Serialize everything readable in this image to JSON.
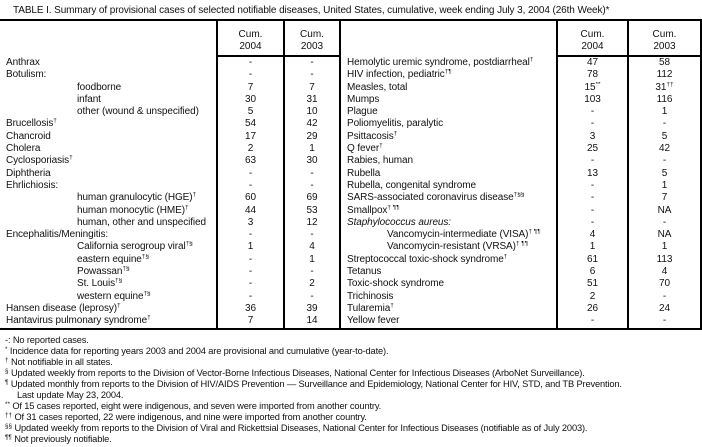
{
  "title": "TABLE I. Summary of provisional cases of selected notifiable diseases, United States, cumulative, week ending July 3, 2004 (26th Week)*",
  "header": {
    "cum": "Cum.",
    "y2004": "2004",
    "y2003": "2003"
  },
  "left_rows": [
    {
      "label": "Anthrax",
      "sup": "",
      "v04": "-",
      "v04s": "",
      "v03": "-",
      "v03s": "",
      "ind": false,
      "it": false
    },
    {
      "label": "Botulism:",
      "sup": "",
      "v04": "-",
      "v04s": "",
      "v03": "-",
      "v03s": "",
      "ind": false,
      "it": false
    },
    {
      "label": "foodborne",
      "sup": "",
      "v04": "7",
      "v04s": "",
      "v03": "7",
      "v03s": "",
      "ind": true,
      "it": false
    },
    {
      "label": "infant",
      "sup": "",
      "v04": "30",
      "v04s": "",
      "v03": "31",
      "v03s": "",
      "ind": true,
      "it": false
    },
    {
      "label": "other (wound & unspecified)",
      "sup": "",
      "v04": "5",
      "v04s": "",
      "v03": "10",
      "v03s": "",
      "ind": true,
      "it": false
    },
    {
      "label": "Brucellosis",
      "sup": "†",
      "v04": "54",
      "v04s": "",
      "v03": "42",
      "v03s": "",
      "ind": false,
      "it": false
    },
    {
      "label": "Chancroid",
      "sup": "",
      "v04": "17",
      "v04s": "",
      "v03": "29",
      "v03s": "",
      "ind": false,
      "it": false
    },
    {
      "label": "Cholera",
      "sup": "",
      "v04": "2",
      "v04s": "",
      "v03": "1",
      "v03s": "",
      "ind": false,
      "it": false
    },
    {
      "label": "Cyclosporiasis",
      "sup": "†",
      "v04": "63",
      "v04s": "",
      "v03": "30",
      "v03s": "",
      "ind": false,
      "it": false
    },
    {
      "label": "Diphtheria",
      "sup": "",
      "v04": "-",
      "v04s": "",
      "v03": "-",
      "v03s": "",
      "ind": false,
      "it": false
    },
    {
      "label": "Ehrlichiosis:",
      "sup": "",
      "v04": "-",
      "v04s": "",
      "v03": "-",
      "v03s": "",
      "ind": false,
      "it": false
    },
    {
      "label": "human granulocytic (HGE)",
      "sup": "†",
      "v04": "60",
      "v04s": "",
      "v03": "69",
      "v03s": "",
      "ind": true,
      "it": false
    },
    {
      "label": "human monocytic (HME)",
      "sup": "†",
      "v04": "44",
      "v04s": "",
      "v03": "53",
      "v03s": "",
      "ind": true,
      "it": false
    },
    {
      "label": "human, other and unspecified",
      "sup": "",
      "v04": "3",
      "v04s": "",
      "v03": "12",
      "v03s": "",
      "ind": true,
      "it": false
    },
    {
      "label": "Encephalitis/Meningitis:",
      "sup": "",
      "v04": "-",
      "v04s": "",
      "v03": "-",
      "v03s": "",
      "ind": false,
      "it": false
    },
    {
      "label": "California serogroup viral",
      "sup": "†§",
      "v04": "1",
      "v04s": "",
      "v03": "4",
      "v03s": "",
      "ind": true,
      "it": false
    },
    {
      "label": "eastern equine",
      "sup": "†§",
      "v04": "-",
      "v04s": "",
      "v03": "1",
      "v03s": "",
      "ind": true,
      "it": false
    },
    {
      "label": "Powassan",
      "sup": "†§",
      "v04": "-",
      "v04s": "",
      "v03": "-",
      "v03s": "",
      "ind": true,
      "it": false
    },
    {
      "label": "St. Louis",
      "sup": "†§",
      "v04": "-",
      "v04s": "",
      "v03": "2",
      "v03s": "",
      "ind": true,
      "it": false
    },
    {
      "label": "western equine",
      "sup": "†§",
      "v04": "-",
      "v04s": "",
      "v03": "-",
      "v03s": "",
      "ind": true,
      "it": false
    },
    {
      "label": "Hansen disease (leprosy)",
      "sup": "†",
      "v04": "36",
      "v04s": "",
      "v03": "39",
      "v03s": "",
      "ind": false,
      "it": false
    },
    {
      "label": "Hantavirus pulmonary syndrome",
      "sup": "†",
      "v04": "7",
      "v04s": "",
      "v03": "14",
      "v03s": "",
      "ind": false,
      "it": false
    }
  ],
  "right_rows": [
    {
      "label": "Hemolytic uremic syndrome, postdiarrheal",
      "sup": "†",
      "v04": "47",
      "v04s": "",
      "v03": "58",
      "v03s": "",
      "ind": false,
      "it": false
    },
    {
      "label": "HIV infection, pediatric",
      "sup": "†¶",
      "v04": "78",
      "v04s": "",
      "v03": "112",
      "v03s": "",
      "ind": false,
      "it": false
    },
    {
      "label": "Measles, total",
      "sup": "",
      "v04": "15",
      "v04s": "**",
      "v03": "31",
      "v03s": "††",
      "ind": false,
      "it": false
    },
    {
      "label": "Mumps",
      "sup": "",
      "v04": "103",
      "v04s": "",
      "v03": "116",
      "v03s": "",
      "ind": false,
      "it": false
    },
    {
      "label": "Plague",
      "sup": "",
      "v04": "-",
      "v04s": "",
      "v03": "1",
      "v03s": "",
      "ind": false,
      "it": false
    },
    {
      "label": "Poliomyelitis, paralytic",
      "sup": "",
      "v04": "-",
      "v04s": "",
      "v03": "-",
      "v03s": "",
      "ind": false,
      "it": false
    },
    {
      "label": "Psittacosis",
      "sup": "†",
      "v04": "3",
      "v04s": "",
      "v03": "5",
      "v03s": "",
      "ind": false,
      "it": false
    },
    {
      "label": "Q fever",
      "sup": "†",
      "v04": "25",
      "v04s": "",
      "v03": "42",
      "v03s": "",
      "ind": false,
      "it": false
    },
    {
      "label": "Rabies, human",
      "sup": "",
      "v04": "-",
      "v04s": "",
      "v03": "-",
      "v03s": "",
      "ind": false,
      "it": false
    },
    {
      "label": "Rubella",
      "sup": "",
      "v04": "13",
      "v04s": "",
      "v03": "5",
      "v03s": "",
      "ind": false,
      "it": false
    },
    {
      "label": "Rubella, congenital syndrome",
      "sup": "",
      "v04": "-",
      "v04s": "",
      "v03": "1",
      "v03s": "",
      "ind": false,
      "it": false
    },
    {
      "label": "SARS-associated coronavirus disease",
      "sup": "†§§",
      "v04": "-",
      "v04s": "",
      "v03": "7",
      "v03s": "",
      "ind": false,
      "it": false
    },
    {
      "label": "Smallpox",
      "sup": "† ¶¶",
      "v04": "-",
      "v04s": "",
      "v03": "NA",
      "v03s": "",
      "ind": false,
      "it": false
    },
    {
      "label": "Staphylococcus aureus:",
      "sup": "",
      "v04": "-",
      "v04s": "",
      "v03": "-",
      "v03s": "",
      "ind": false,
      "it": true
    },
    {
      "label": "Vancomycin-intermediate (VISA)",
      "sup": "† ¶¶",
      "v04": "4",
      "v04s": "",
      "v03": "NA",
      "v03s": "",
      "ind": true,
      "it": false
    },
    {
      "label": "Vancomycin-resistant (VRSA)",
      "sup": "† ¶¶",
      "v04": "1",
      "v04s": "",
      "v03": "1",
      "v03s": "",
      "ind": true,
      "it": false
    },
    {
      "label": "Streptococcal toxic-shock syndrome",
      "sup": "†",
      "v04": "61",
      "v04s": "",
      "v03": "113",
      "v03s": "",
      "ind": false,
      "it": false
    },
    {
      "label": "Tetanus",
      "sup": "",
      "v04": "6",
      "v04s": "",
      "v03": "4",
      "v03s": "",
      "ind": false,
      "it": false
    },
    {
      "label": "Toxic-shock syndrome",
      "sup": "",
      "v04": "51",
      "v04s": "",
      "v03": "70",
      "v03s": "",
      "ind": false,
      "it": false
    },
    {
      "label": "Trichinosis",
      "sup": "",
      "v04": "2",
      "v04s": "",
      "v03": "-",
      "v03s": "",
      "ind": false,
      "it": false
    },
    {
      "label": "Tularemia",
      "sup": "†",
      "v04": "26",
      "v04s": "",
      "v03": "24",
      "v03s": "",
      "ind": false,
      "it": false
    },
    {
      "label": "Yellow fever",
      "sup": "",
      "v04": "-",
      "v04s": "",
      "v03": "-",
      "v03s": "",
      "ind": false,
      "it": false
    }
  ],
  "footnotes": [
    {
      "marker": "-:",
      "sup": false,
      "text": "No reported cases."
    },
    {
      "marker": "*",
      "sup": true,
      "text": "Incidence data for reporting years 2003 and 2004 are provisional and cumulative (year-to-date)."
    },
    {
      "marker": "†",
      "sup": true,
      "text": "Not notifiable in all states."
    },
    {
      "marker": "§",
      "sup": true,
      "text": "Updated weekly from reports to the Division of Vector-Borne Infectious Diseases, National Center for Infectious Diseases (ArboNet Surveillance)."
    },
    {
      "marker": "¶",
      "sup": true,
      "text": "Updated monthly from reports to the Division of HIV/AIDS Prevention — Surveillance and Epidemiology, National Center for HIV, STD, and TB Prevention.\nLast update May 23, 2004."
    },
    {
      "marker": "**",
      "sup": true,
      "text": "Of 15 cases reported, eight were indigenous, and seven were imported from another country."
    },
    {
      "marker": "††",
      "sup": true,
      "text": "Of 31 cases reported, 22 were indigenous, and nine were imported from another country."
    },
    {
      "marker": "§§",
      "sup": true,
      "text": "Updated weekly from reports to the Division of Viral and Rickettsial Diseases, National Center for Infectious Diseases (notifiable as of July 2003)."
    },
    {
      "marker": "¶¶",
      "sup": true,
      "text": "Not previously notifiable."
    }
  ]
}
